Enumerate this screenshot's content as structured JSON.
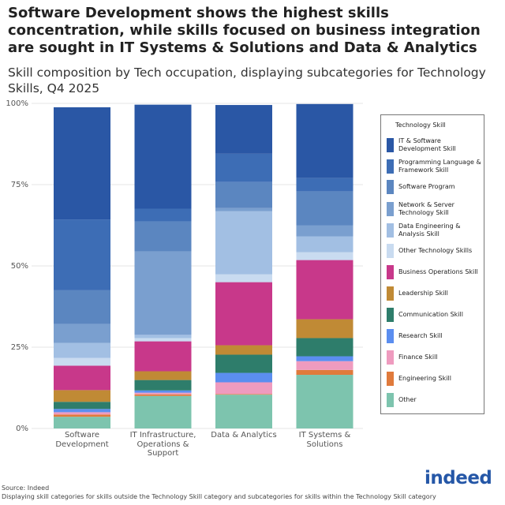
{
  "chart_data": {
    "type": "stacked_bar",
    "title": "Software Development shows the highest skills concentration, while skills focused on business integration are sought in IT Systems & Solutions and Data & Analytics",
    "subtitle": "Skill composition by Tech occupation, displaying subcategories for Technology Skills, Q4 2025",
    "categories": [
      "Software Development",
      "IT Infrastructure, Operations & Support",
      "Data & Analytics",
      "IT Systems & Solutions"
    ],
    "ylim": [
      0,
      100
    ],
    "yticks": [
      {
        "value": 0,
        "label": "0%"
      },
      {
        "value": 25,
        "label": "25%"
      },
      {
        "value": 50,
        "label": "50%"
      },
      {
        "value": 75,
        "label": "75%"
      },
      {
        "value": 100,
        "label": "100%"
      }
    ],
    "grid": true,
    "legend_title": "Technology Skill",
    "legend_position": "right",
    "series": [
      {
        "name": "Other",
        "color": "#7dc4ae",
        "values": [
          3.6,
          10,
          10.4,
          16.5
        ]
      },
      {
        "name": "Engineering Skill",
        "color": "#e07a3c",
        "values": [
          0.7,
          0.5,
          0.2,
          1.5
        ]
      },
      {
        "name": "Finance Skill",
        "color": "#ef9bbf",
        "values": [
          0.7,
          0.5,
          3.6,
          2.7
        ]
      },
      {
        "name": "Research Skill",
        "color": "#5b8ef0",
        "values": [
          1,
          0.7,
          2.9,
          1.5
        ]
      },
      {
        "name": "Communication Skill",
        "color": "#2e7d6b",
        "values": [
          2.2,
          3.2,
          5.6,
          5.6
        ]
      },
      {
        "name": "Leadership Skill",
        "color": "#c08a35",
        "values": [
          3.6,
          2.7,
          2.9,
          5.8
        ]
      },
      {
        "name": "Business Operations Skill",
        "color": "#c8388a",
        "values": [
          7.5,
          9.2,
          19.4,
          18.2
        ]
      },
      {
        "name": "Other Technology Skills",
        "color": "#c9dbf0",
        "values": [
          2.4,
          1,
          2.4,
          2.4
        ]
      },
      {
        "name": "Data Engineering & Analysis Skill",
        "color": "#a2bfe3",
        "values": [
          4.6,
          1,
          19.4,
          4.9
        ]
      },
      {
        "name": "Network & Server Technology Skill",
        "color": "#7a9fcf",
        "values": [
          5.8,
          25.7,
          1,
          3.4
        ]
      },
      {
        "name": "Software Program",
        "color": "#5b86c0",
        "values": [
          10.4,
          9.2,
          8,
          10.4
        ]
      },
      {
        "name": "Programming Language & Framework Skill",
        "color": "#3d6db5",
        "values": [
          21.8,
          3.9,
          8.7,
          4.1
        ]
      },
      {
        "name": "IT & Software Development Skill",
        "color": "#2a57a5",
        "values": [
          34.5,
          32,
          15,
          22.8
        ]
      }
    ],
    "source": "Source: Indeed",
    "note": "Displaying skill categories for skills outside the Technology Skill category and subcategories for skills within the Technology Skill category",
    "logo": "indeed"
  }
}
